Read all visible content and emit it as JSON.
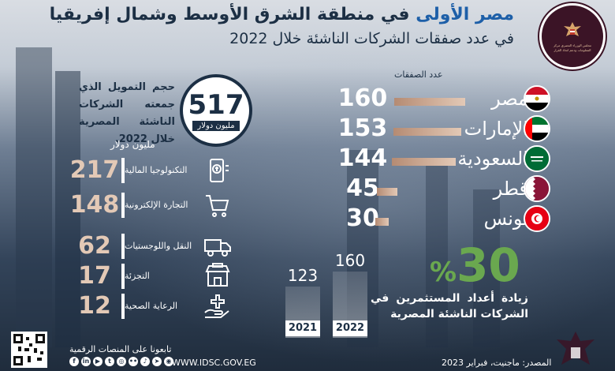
{
  "header": {
    "title_highlight": "مصر الأولى",
    "title_connector": "في",
    "title_rest": "منطقة الشرق الأوسط وشمال إفريقيا",
    "subtitle": "في عدد صفقات الشركات الناشئة خلال 2022",
    "logo_text": "مجلس الوزراء المصري مركز المعلومات ودعم اتخاذ القرار"
  },
  "colors": {
    "navy": "#1c2f44",
    "accent_blue": "#1d5fa8",
    "accent_green": "#6aa84f",
    "bar_tan": "#e3c9b6",
    "logo_maroon": "#3b1426"
  },
  "chart_data": [
    {
      "type": "bar",
      "orientation": "horizontal",
      "ylabel": "عدد الصفقات",
      "categories": [
        "مصر",
        "الإمارات",
        "السعودية",
        "قطر",
        "تونس"
      ],
      "values": [
        160,
        153,
        144,
        45,
        30
      ],
      "flags": [
        "egypt-flag-icon",
        "uae-flag-icon",
        "saudi-flag-icon",
        "qatar-flag-icon",
        "tunisia-flag-icon"
      ]
    },
    {
      "type": "bar",
      "orientation": "vertical",
      "categories": [
        "2021",
        "2022"
      ],
      "values": [
        123,
        160
      ],
      "growth_pct": "30",
      "growth_sign": "%",
      "caption": "زيادة أعداد المستثمرين في الشركات الناشئة المصرية"
    },
    {
      "type": "table",
      "unit": "مليون دولار",
      "rows": [
        {
          "label": "التكنولوجيا المالية",
          "value": 217,
          "icon": "fintech-phone-icon"
        },
        {
          "label": "التجارة الإلكترونية",
          "value": 148,
          "icon": "shopping-cart-icon"
        },
        {
          "label": "النقل واللوجستيات",
          "value": 62,
          "icon": "delivery-truck-icon"
        },
        {
          "label": "التجزئة",
          "value": 17,
          "icon": "retail-store-icon"
        },
        {
          "label": "الرعاية الصحية",
          "value": 12,
          "icon": "healthcare-hand-icon"
        }
      ]
    }
  ],
  "funding": {
    "total": "517",
    "total_unit": "مليون دولار",
    "description": "حجم التمويل الذي جمعته الشركات الناشئة المصرية خلال 2022."
  },
  "footer": {
    "follow_text": "تابعونا على المنصات الرقمية",
    "website": "WWW.IDSC.GOV.EG",
    "source": "المصدر: ماجنيت، فبراير 2023",
    "social_icons": [
      "facebook-icon",
      "linkedin-icon",
      "youtube-icon",
      "twitter-icon",
      "instagram-icon",
      "flickr-icon",
      "tiktok-icon",
      "telegram-icon",
      "podcast-icon"
    ]
  }
}
